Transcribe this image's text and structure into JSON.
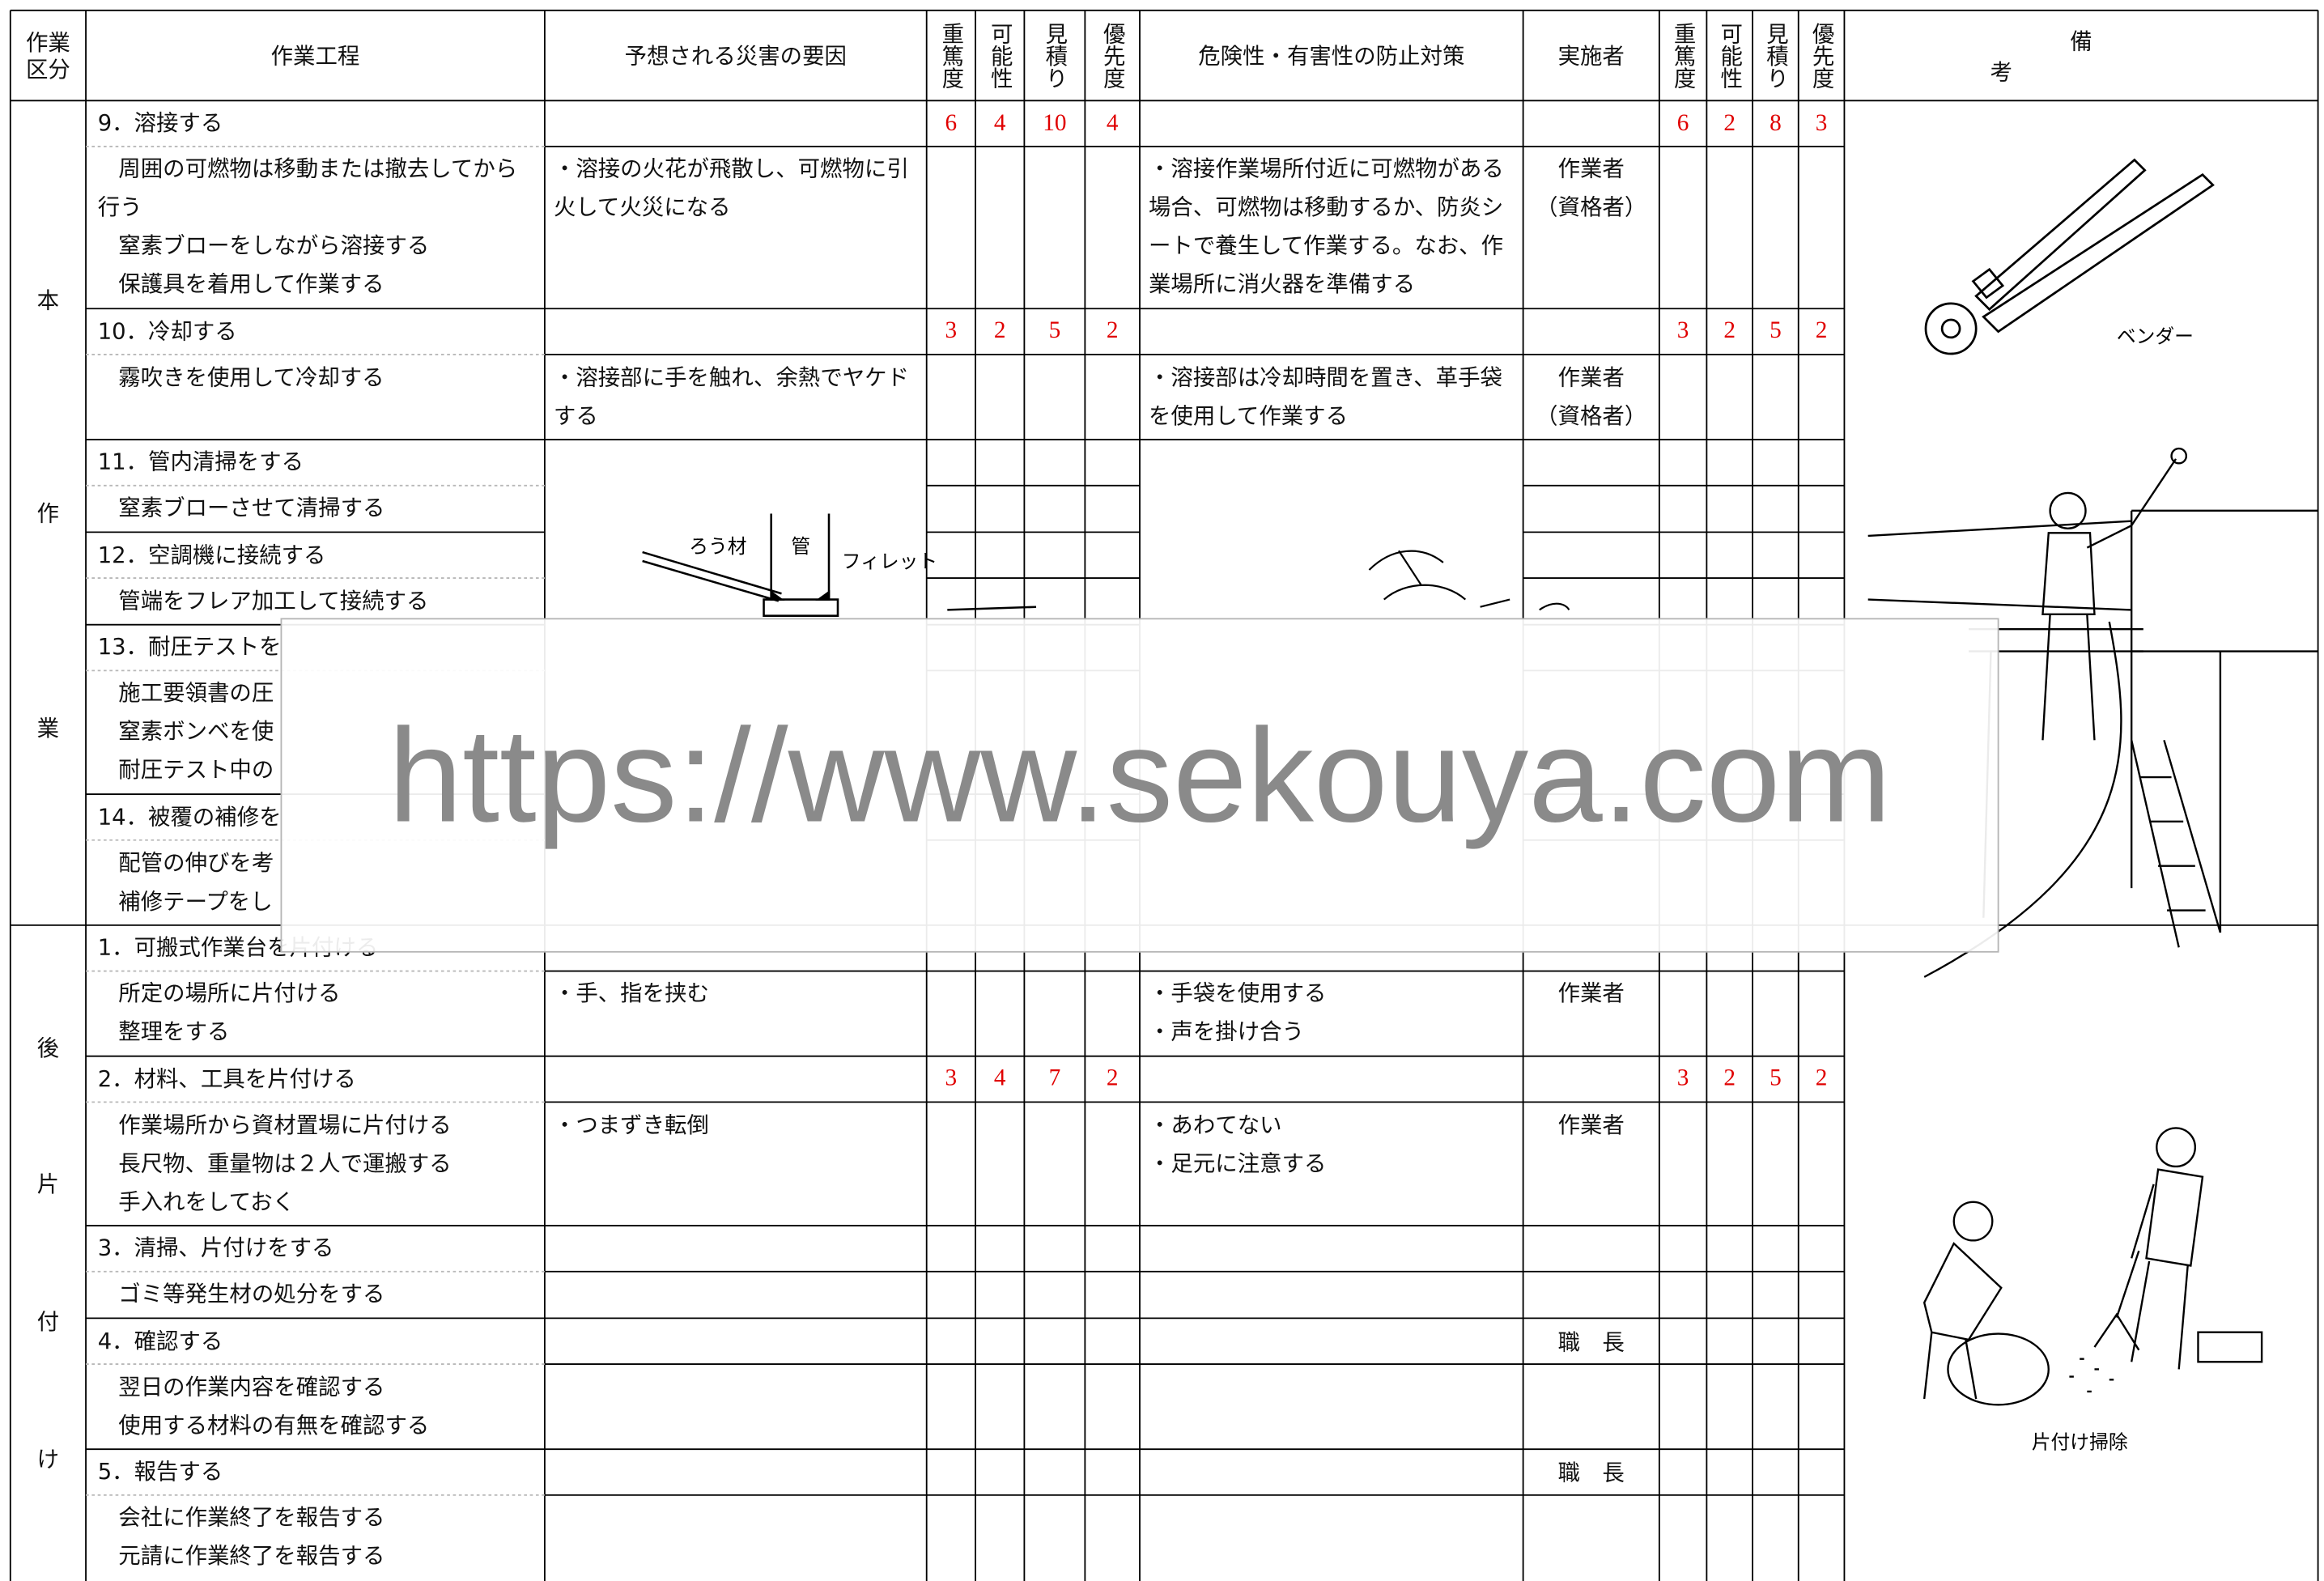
{
  "header": {
    "category": "作業区分",
    "process": "作業工程",
    "cause": "予想される災害の要因",
    "scores": [
      "重篤度",
      "可能性",
      "見積り",
      "優先度"
    ],
    "measure": "危険性・有害性の防止対策",
    "actor": "実施者",
    "scores_after": [
      "重篤度",
      "可能性",
      "見積り",
      "優先度"
    ],
    "remarks": "備考"
  },
  "sections": [
    {
      "label": [
        "本",
        "作",
        "業"
      ],
      "figures": {
        "bender": "ベンダー",
        "brazing": [
          "ろう材",
          "管",
          "フィレット"
        ]
      },
      "steps": [
        {
          "title": "9．溶接する",
          "scores": [
            6,
            4,
            10,
            4
          ],
          "scores_after": [
            6,
            2,
            8,
            3
          ],
          "tasks": [
            "周囲の可燃物は移動または撤去してから行う",
            "窒素ブローをしながら溶接する",
            "保護具を着用して作業する"
          ],
          "causes": [
            "・溶接の火花が飛散し、可燃物に引火して火災になる"
          ],
          "measures": [
            "・溶接作業場所付近に可燃物がある場合、可燃物は移動するか、防炎シートで養生して作業する。なお、作業場所に消火器を準備する"
          ],
          "actor": [
            "作業者",
            "（資格者）"
          ]
        },
        {
          "title": "10．冷却する",
          "scores": [
            3,
            2,
            5,
            2
          ],
          "scores_after": [
            3,
            2,
            5,
            2
          ],
          "tasks": [
            "霧吹きを使用して冷却する"
          ],
          "causes": [
            "・溶接部に手を触れ、余熱でヤケドする"
          ],
          "measures": [
            "・溶接部は冷却時間を置き、革手袋を使用して作業する"
          ],
          "actor": [
            "作業者",
            "（資格者）"
          ]
        },
        {
          "title": "11．管内清掃をする",
          "tasks": [
            "窒素ブローさせて清掃する"
          ]
        },
        {
          "title": "12．空調機に接続する",
          "tasks": [
            "管端をフレア加工して接続する"
          ]
        },
        {
          "title": "13．耐圧テストを",
          "tasks": [
            "施工要領書の圧",
            "窒素ボンベを使",
            "耐圧テスト中の"
          ]
        },
        {
          "title": "14．被覆の補修を",
          "tasks": [
            "配管の伸びを考",
            "補修テープをし"
          ]
        }
      ]
    },
    {
      "label": [
        "後",
        "片",
        "付",
        "け"
      ],
      "figures": {
        "cleanup": "片付け掃除"
      },
      "steps": [
        {
          "title": "1．可搬式作業台を片付ける",
          "tasks": [
            "所定の場所に片付ける",
            "整理をする"
          ],
          "causes": [
            "・手、指を挟む"
          ],
          "measures": [
            "・手袋を使用する",
            "・声を掛け合う"
          ],
          "actor": [
            "作業者"
          ]
        },
        {
          "title": "2．材料、工具を片付ける",
          "scores": [
            3,
            4,
            7,
            2
          ],
          "scores_after": [
            3,
            2,
            5,
            2
          ],
          "tasks": [
            "作業場所から資材置場に片付ける",
            "長尺物、重量物は２人で運搬する",
            "手入れをしておく"
          ],
          "causes": [
            "・つまずき転倒"
          ],
          "measures": [
            "・あわてない",
            "・足元に注意する"
          ],
          "actor": [
            "作業者"
          ]
        },
        {
          "title": "3．清掃、片付けをする",
          "tasks": [
            "ゴミ等発生材の処分をする"
          ]
        },
        {
          "title": "4．確認する",
          "supervisor": "職　長",
          "tasks": [
            "翌日の作業内容を確認する",
            "使用する材料の有無を確認する"
          ]
        },
        {
          "title": "5．報告する",
          "supervisor": "職　長",
          "tasks": [
            "会社に作業終了を報告する",
            "元請に作業終了を報告する"
          ]
        }
      ]
    }
  ],
  "watermark": "https://www.sekouya.com"
}
